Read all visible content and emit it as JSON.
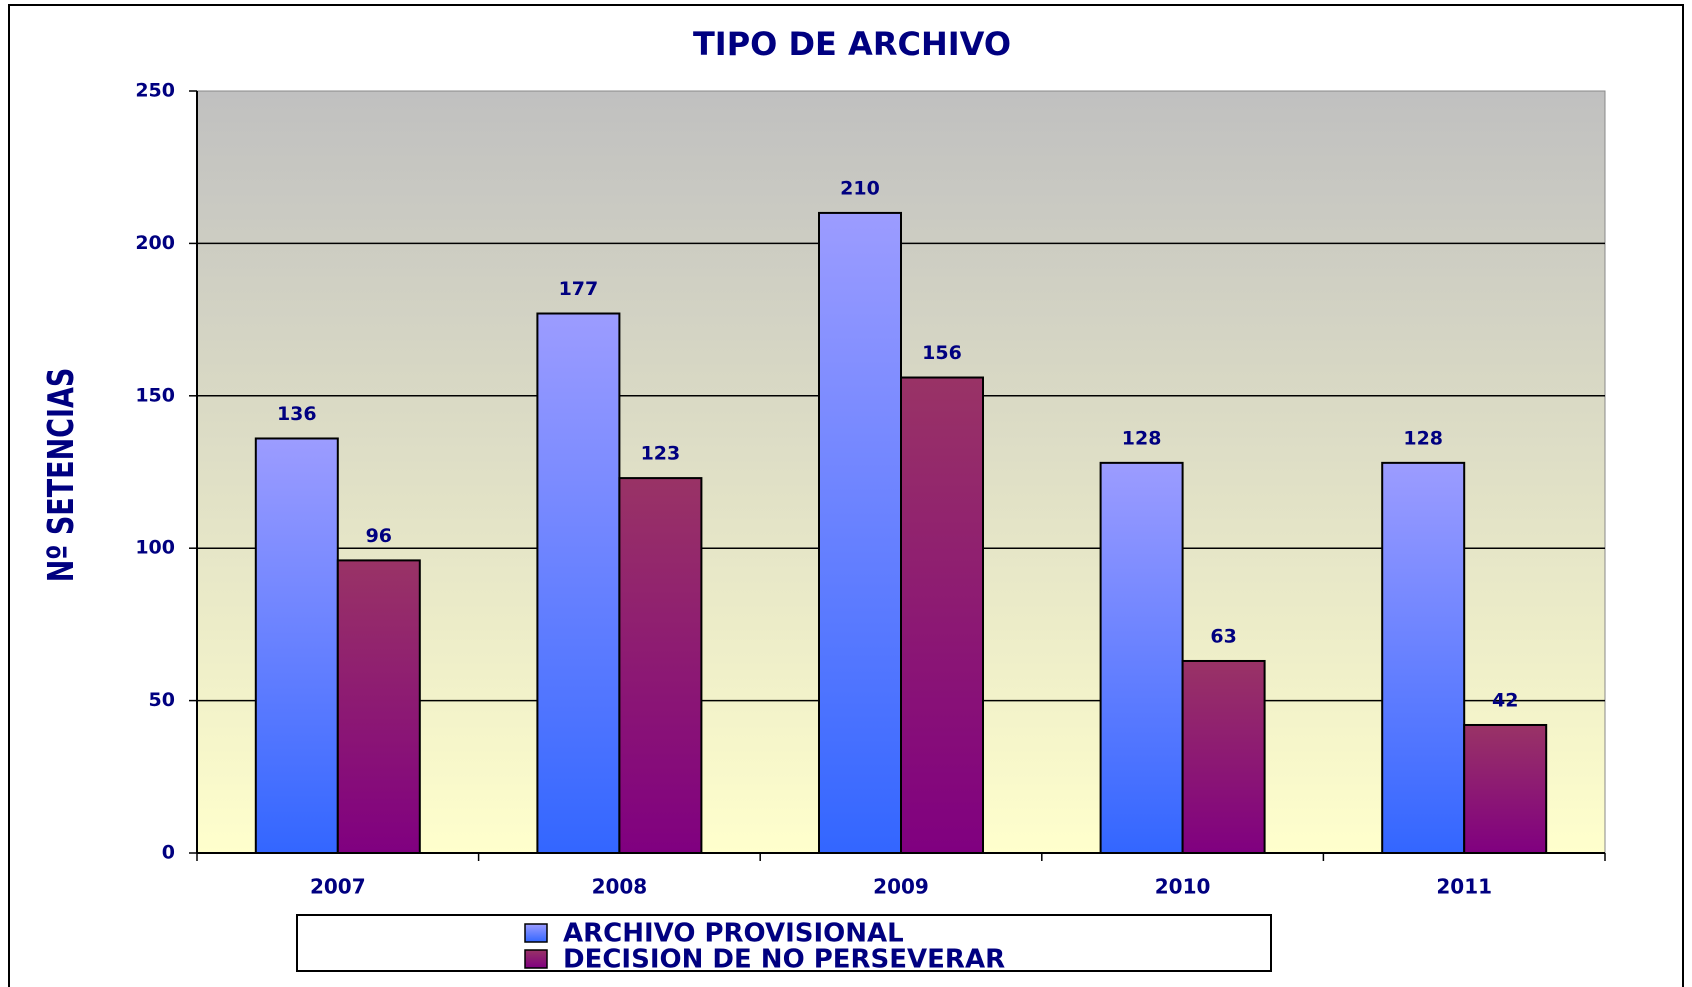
{
  "chart_data": {
    "type": "bar",
    "title": "TIPO DE ARCHIVO",
    "y_label": "Nº SETENCIAS",
    "categories": [
      "2007",
      "2008",
      "2009",
      "2010",
      "2011"
    ],
    "series": [
      {
        "name": "ARCHIVO PROVISIONAL",
        "color": "#6f7dff",
        "values": [
          136,
          177,
          210,
          128,
          128
        ]
      },
      {
        "name": "DECISION DE NO PERSEVERAR",
        "color": "#8c2a6e",
        "values": [
          96,
          123,
          156,
          63,
          42
        ]
      }
    ],
    "ylim": [
      0,
      250
    ],
    "yticks": [
      0,
      50,
      100,
      150,
      200,
      250
    ],
    "grid": true,
    "legend": "bottom"
  }
}
